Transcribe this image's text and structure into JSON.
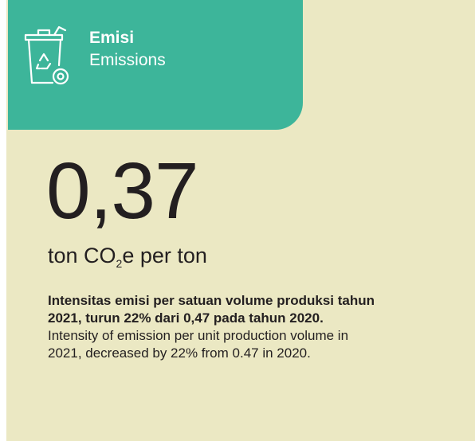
{
  "header": {
    "title": "Emisi",
    "subtitle": "Emissions"
  },
  "metric": {
    "value": "0,37",
    "unit_prefix": "ton CO",
    "unit_subscript": "2",
    "unit_suffix": "e per ton"
  },
  "description": {
    "bold_lines": [
      "Intensitas emisi per satuan volume produksi tahun",
      "2021, turun 22% dari 0,47 pada tahun 2020."
    ],
    "lines": [
      "Intensity of emission per unit production volume in",
      "2021, decreased by 22% from 0.47 in 2020."
    ]
  }
}
